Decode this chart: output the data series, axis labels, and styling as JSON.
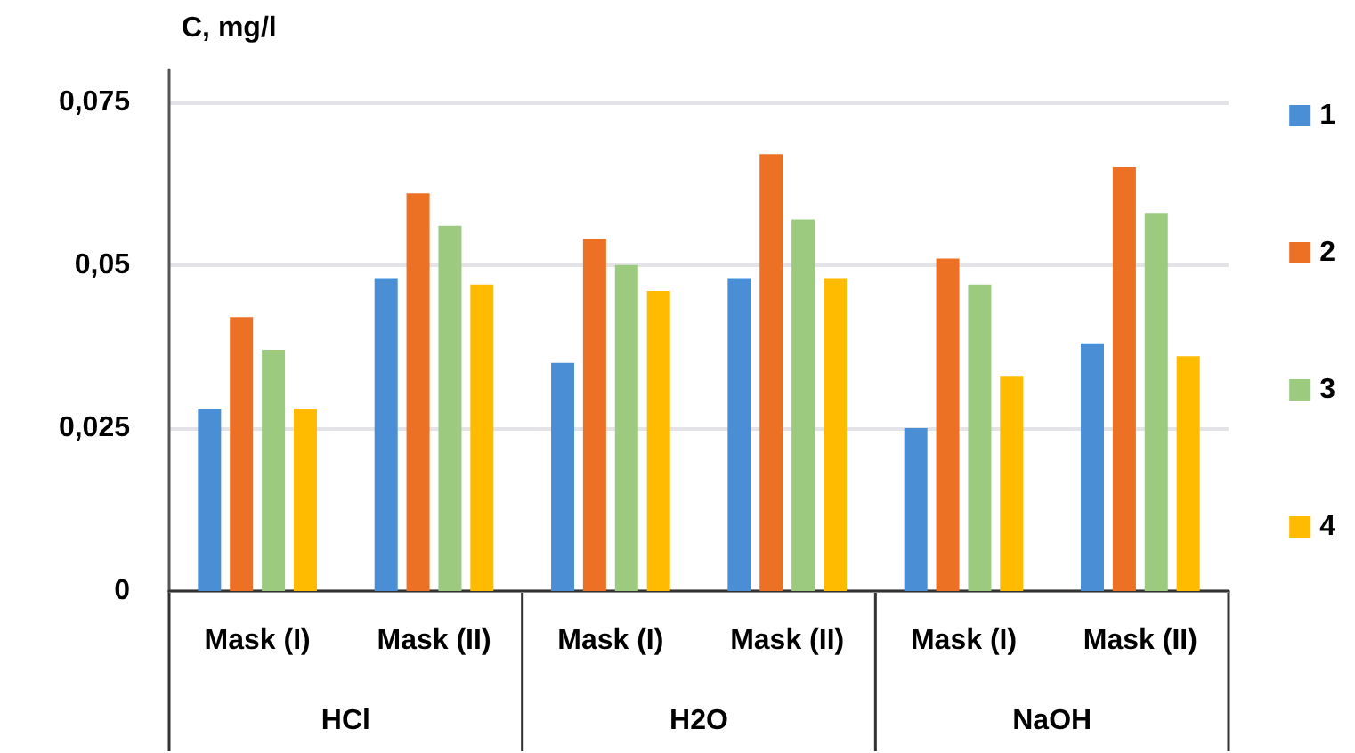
{
  "chart_data": {
    "type": "bar",
    "ylabel": "C, mg/l",
    "categories": [
      "Mask (I)",
      "Mask (II)",
      "Mask (I)",
      "Mask (II)",
      "Mask (I)",
      "Mask (II)"
    ],
    "annotations": [
      "HCl",
      "H2O",
      "NaOH"
    ],
    "series": [
      {
        "name": "1",
        "color": "#4a8fd6",
        "values": [
          0.028,
          0.048,
          0.035,
          0.048,
          0.025,
          0.038
        ]
      },
      {
        "name": "2",
        "color": "#ed7125",
        "values": [
          0.042,
          0.061,
          0.054,
          0.067,
          0.051,
          0.065
        ]
      },
      {
        "name": "3",
        "color": "#9ccb80",
        "values": [
          0.037,
          0.056,
          0.05,
          0.057,
          0.047,
          0.058
        ]
      },
      {
        "name": "4",
        "color": "#ffbb00",
        "values": [
          0.028,
          0.047,
          0.046,
          0.048,
          0.033,
          0.036
        ]
      }
    ],
    "ylim": [
      0,
      0.08
    ],
    "yticks": [
      0,
      {
        "value": 0.025,
        "label": "0,025"
      },
      {
        "value": 0.05,
        "label": "0,05"
      },
      {
        "value": 0.075,
        "label": "0,075"
      }
    ],
    "grid": "y",
    "legend": "right"
  }
}
